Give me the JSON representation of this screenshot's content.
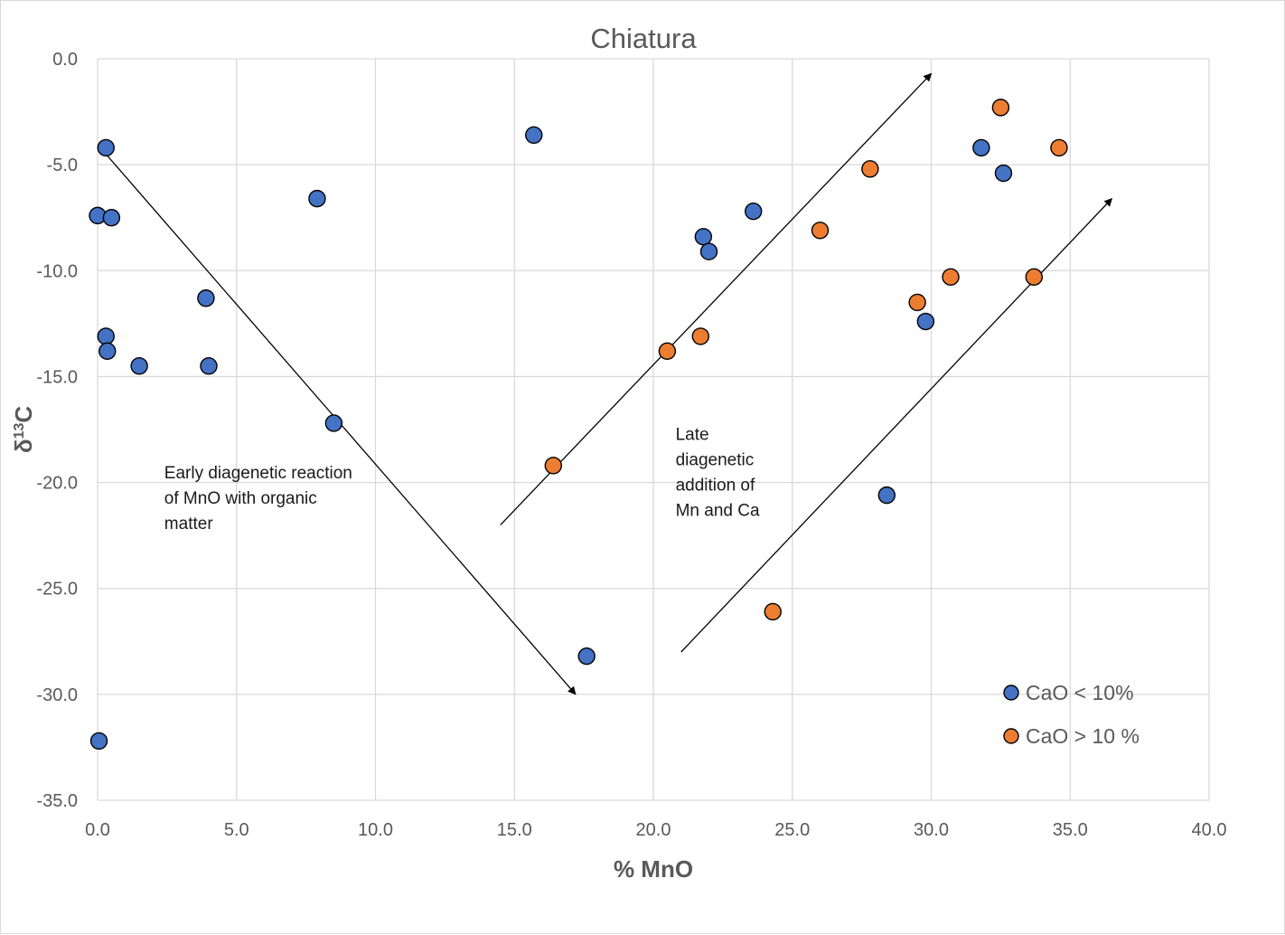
{
  "chart_data": {
    "type": "scatter",
    "title": "Chiatura",
    "xlabel": "% MnO",
    "ylabel_base": "δ",
    "ylabel_sup": "13",
    "ylabel_tail": "C",
    "xlim": [
      0,
      40
    ],
    "ylim": [
      -35,
      0
    ],
    "x_ticks": [
      "0.0",
      "5.0",
      "10.0",
      "15.0",
      "20.0",
      "25.0",
      "30.0",
      "35.0",
      "40.0"
    ],
    "y_ticks": [
      "0.0",
      "-5.0",
      "-10.0",
      "-15.0",
      "-20.0",
      "-25.0",
      "-30.0",
      "-35.0"
    ],
    "grid": true,
    "legend_position": "bottom-right",
    "series": [
      {
        "name": "CaO < 10%",
        "color": "#4472C4",
        "points": [
          {
            "x": 0.3,
            "y": -4.2
          },
          {
            "x": 0.0,
            "y": -7.4
          },
          {
            "x": 0.5,
            "y": -7.5
          },
          {
            "x": 0.3,
            "y": -13.1
          },
          {
            "x": 0.35,
            "y": -13.8
          },
          {
            "x": 1.5,
            "y": -14.5
          },
          {
            "x": 3.9,
            "y": -11.3
          },
          {
            "x": 4.0,
            "y": -14.5
          },
          {
            "x": 7.9,
            "y": -6.6
          },
          {
            "x": 8.5,
            "y": -17.2
          },
          {
            "x": 0.05,
            "y": -32.2
          },
          {
            "x": 15.7,
            "y": -3.6
          },
          {
            "x": 17.6,
            "y": -28.2
          },
          {
            "x": 21.8,
            "y": -8.4
          },
          {
            "x": 22.0,
            "y": -9.1
          },
          {
            "x": 23.6,
            "y": -7.2
          },
          {
            "x": 28.4,
            "y": -20.6
          },
          {
            "x": 29.8,
            "y": -12.4
          },
          {
            "x": 31.8,
            "y": -4.2
          },
          {
            "x": 32.6,
            "y": -5.4
          }
        ]
      },
      {
        "name": "CaO > 10 %",
        "color": "#ED7D31",
        "points": [
          {
            "x": 16.4,
            "y": -19.2
          },
          {
            "x": 20.5,
            "y": -13.8
          },
          {
            "x": 21.7,
            "y": -13.1
          },
          {
            "x": 24.3,
            "y": -26.1
          },
          {
            "x": 26.0,
            "y": -8.1
          },
          {
            "x": 27.8,
            "y": -5.2
          },
          {
            "x": 29.5,
            "y": -11.5
          },
          {
            "x": 30.7,
            "y": -10.3
          },
          {
            "x": 32.5,
            "y": -2.3
          },
          {
            "x": 33.7,
            "y": -10.3
          },
          {
            "x": 34.6,
            "y": -4.2
          }
        ]
      }
    ],
    "arrows": [
      {
        "from": [
          0.3,
          -4.5
        ],
        "to": [
          17.2,
          -30.0
        ]
      },
      {
        "from": [
          14.5,
          -22.0
        ],
        "to": [
          30.0,
          -0.7
        ]
      },
      {
        "from": [
          21.0,
          -28.0
        ],
        "to": [
          36.5,
          -6.6
        ]
      }
    ],
    "annotations": [
      {
        "lines": [
          "Early diagenetic reaction",
          "of MnO with organic",
          "matter"
        ],
        "at": [
          2.4,
          -19.8
        ]
      },
      {
        "lines": [
          "Late",
          "diagenetic",
          "addition of",
          "Mn and Ca"
        ],
        "at": [
          20.8,
          -18.0
        ]
      }
    ]
  }
}
